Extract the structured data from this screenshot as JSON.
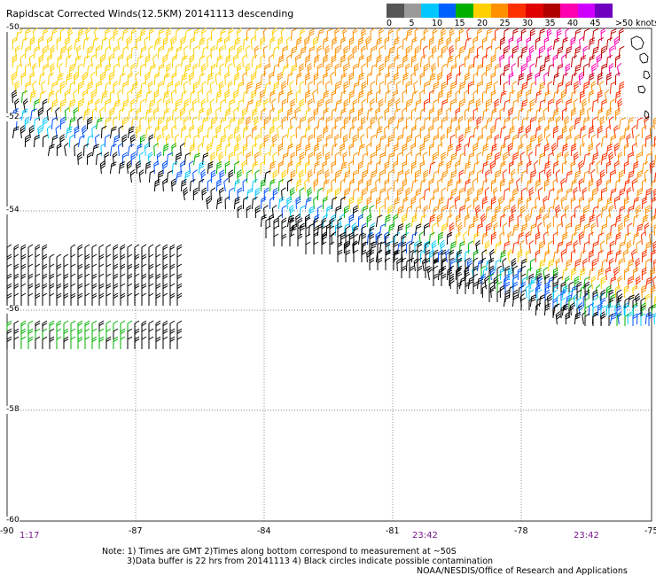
{
  "title": "Rapidscat Corrected Winds(12.5KM) 20141113 descending",
  "legend": {
    "unit_label": ">50 knots",
    "labels": [
      "0",
      "5",
      "10",
      "15",
      "20",
      "25",
      "30",
      "35",
      "40",
      "45"
    ],
    "colors": [
      "#555555",
      "#9a9a9a",
      "#00c8ff",
      "#0060ff",
      "#00b000",
      "#ffd000",
      "#ff9000",
      "#ff3000",
      "#e00000",
      "#b00000",
      "#ff00b0",
      "#d000ff",
      "#7000c0"
    ]
  },
  "axes": {
    "x_ticks": [
      "-90",
      "-87",
      "-84",
      "-81",
      "-78",
      "-75"
    ],
    "y_ticks": [
      "-50",
      "-52",
      "-54",
      "-56",
      "-58",
      "-60"
    ]
  },
  "time_labels": [
    "1:17",
    "23:42",
    "23:42"
  ],
  "notes": [
    "Note: 1) Times are GMT 2)Times along bottom correspond to measurement at ~50S",
    "3)Data buffer is 22 hrs from 20141113 4) Black circles indicate possible contamination",
    "NOAA/NESDIS/Office of Research and Applications"
  ],
  "wind_colors": {
    "calm": "#000000",
    "light": "#00c8ff",
    "blue": "#0050ff",
    "green": "#00b000",
    "yellow": "#ffd000",
    "orange": "#ff9000",
    "red": "#ff3000",
    "darkred": "#c00000",
    "magenta": "#ff00b0"
  }
}
